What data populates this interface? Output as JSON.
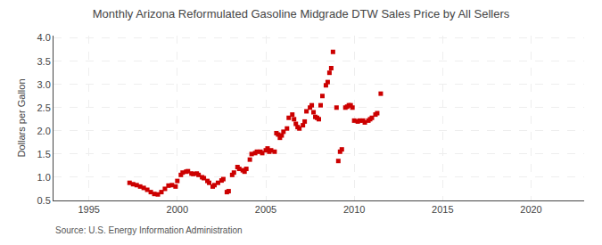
{
  "chart_data": {
    "type": "scatter",
    "title": "Monthly Arizona Reformulated Gasoline Midgrade DTW Sales Price by All Sellers",
    "ylabel": "Dollars per Gallon",
    "annotation": "Source: U.S. Energy Information Administration",
    "xlim": [
      1993.0,
      2023.0
    ],
    "ylim": [
      0.5,
      4.05
    ],
    "xticks": [
      1995,
      2000,
      2005,
      2010,
      2015,
      2020
    ],
    "yticks": [
      0.5,
      {
        "value": 1.0,
        "label": "1.0"
      },
      1.5,
      {
        "value": 2.0,
        "label": "2.0"
      },
      2.5,
      {
        "value": 3.0,
        "label": "3.0"
      },
      3.5,
      {
        "value": 4.0,
        "label": "4.0"
      }
    ],
    "grid": true,
    "color": "#cc0000",
    "marker": "square",
    "x": [
      1997.3,
      1997.5,
      1997.7,
      1997.9,
      1998.1,
      1998.3,
      1998.5,
      1998.7,
      1998.9,
      1999.1,
      1999.3,
      1999.5,
      1999.7,
      1999.9,
      2000.0,
      2000.2,
      2000.3,
      2000.5,
      2000.6,
      2000.8,
      2000.9,
      2001.1,
      2001.2,
      2001.4,
      2001.5,
      2001.7,
      2001.8,
      2002.0,
      2002.1,
      2002.3,
      2002.5,
      2002.6,
      2002.8,
      2002.9,
      2003.1,
      2003.2,
      2003.4,
      2003.5,
      2003.7,
      2003.8,
      2003.9,
      2004.1,
      2004.2,
      2004.4,
      2004.5,
      2004.7,
      2004.8,
      2005.0,
      2005.1,
      2005.2,
      2005.3,
      2005.5,
      2005.6,
      2005.7,
      2005.8,
      2005.9,
      2006.0,
      2006.2,
      2006.3,
      2006.5,
      2006.6,
      2006.7,
      2006.8,
      2006.9,
      2007.1,
      2007.2,
      2007.3,
      2007.5,
      2007.6,
      2007.7,
      2007.8,
      2007.9,
      2008.0,
      2008.1,
      2008.2,
      2008.4,
      2008.5,
      2008.6,
      2008.7,
      2008.8,
      2009.0,
      2009.1,
      2009.2,
      2009.3,
      2009.5,
      2009.6,
      2009.7,
      2009.8,
      2009.9,
      2010.0,
      2010.2,
      2010.3,
      2010.5,
      2010.6,
      2010.8,
      2010.9,
      2011.0,
      2011.2,
      2011.3,
      2011.5
    ],
    "values": [
      0.88,
      0.85,
      0.83,
      0.8,
      0.77,
      0.73,
      0.68,
      0.64,
      0.63,
      0.68,
      0.75,
      0.82,
      0.83,
      0.8,
      0.92,
      1.05,
      1.1,
      1.12,
      1.13,
      1.08,
      1.07,
      1.08,
      1.05,
      1.0,
      0.98,
      0.92,
      0.88,
      0.8,
      0.83,
      0.88,
      0.93,
      0.96,
      0.68,
      0.7,
      1.05,
      1.1,
      1.22,
      1.18,
      1.15,
      1.12,
      1.18,
      1.38,
      1.5,
      1.52,
      1.55,
      1.55,
      1.52,
      1.58,
      1.62,
      1.55,
      1.58,
      1.55,
      1.95,
      1.92,
      1.85,
      1.9,
      1.98,
      2.05,
      2.28,
      2.35,
      2.25,
      2.15,
      2.08,
      2.05,
      2.12,
      2.2,
      2.42,
      2.5,
      2.55,
      2.4,
      2.3,
      2.28,
      2.25,
      2.55,
      2.75,
      2.98,
      3.05,
      3.25,
      3.35,
      3.7,
      2.5,
      1.35,
      1.55,
      1.6,
      2.5,
      2.52,
      2.55,
      2.55,
      2.5,
      2.22,
      2.2,
      2.22,
      2.22,
      2.18,
      2.22,
      2.25,
      2.28,
      2.35,
      2.38,
      2.8
    ]
  }
}
